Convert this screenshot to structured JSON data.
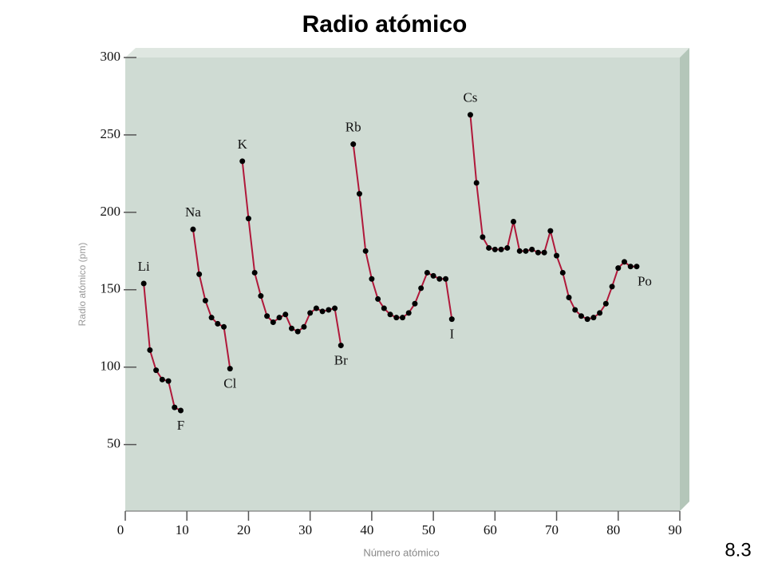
{
  "chart_data": {
    "type": "line",
    "title": "Radio atómico",
    "x_label": "Número atómico",
    "y_label": "Radio atómico (pm)",
    "figure_number": "8.3",
    "xlim": [
      0,
      90
    ],
    "ylim": [
      7,
      300
    ],
    "xticks": [
      0,
      10,
      20,
      30,
      40,
      50,
      60,
      70,
      80,
      90
    ],
    "yticks": [
      50,
      100,
      150,
      200,
      250,
      300
    ],
    "series": [
      {
        "color": "#b0183a",
        "x": [
          3,
          4,
          5,
          6,
          7,
          8,
          9
        ],
        "values": [
          154,
          111,
          98,
          92,
          91,
          74,
          72
        ]
      },
      {
        "color": "#b0183a",
        "x": [
          11,
          12,
          13,
          14,
          15,
          16,
          17
        ],
        "values": [
          189,
          160,
          143,
          132,
          128,
          126,
          99
        ]
      },
      {
        "color": "#b0183a",
        "x": [
          19,
          20,
          21,
          22,
          23,
          24,
          25,
          26,
          27,
          28,
          29,
          30,
          31,
          32,
          33,
          34,
          35
        ],
        "values": [
          233,
          196,
          161,
          146,
          133,
          129,
          132,
          134,
          125,
          123,
          126,
          135,
          138,
          136,
          137,
          138,
          114
        ]
      },
      {
        "color": "#b0183a",
        "x": [
          37,
          38,
          39,
          40,
          41,
          42,
          43,
          44,
          45,
          46,
          47,
          48,
          49,
          50,
          51,
          52,
          53
        ],
        "values": [
          244,
          212,
          175,
          157,
          144,
          138,
          134,
          132,
          132,
          135,
          141,
          151,
          161,
          159,
          157,
          157,
          131
        ]
      },
      {
        "color": "#b0183a",
        "x": [
          56,
          57,
          58,
          59,
          60,
          61,
          62,
          63,
          64,
          65,
          66,
          67,
          68,
          69,
          70,
          71,
          72,
          73,
          74,
          75,
          76,
          77,
          78,
          79,
          80,
          81,
          82,
          83
        ],
        "values": [
          263,
          219,
          184,
          177,
          176,
          176,
          177,
          194,
          175,
          175,
          176,
          174,
          174,
          188,
          172,
          161,
          145,
          137,
          133,
          131,
          132,
          135,
          141,
          152,
          164,
          168,
          165,
          165
        ]
      }
    ],
    "annotations": [
      {
        "text": "Li",
        "x": 3,
        "y": 154,
        "position": "above"
      },
      {
        "text": "F",
        "x": 9,
        "y": 72,
        "position": "below"
      },
      {
        "text": "Na",
        "x": 11,
        "y": 189,
        "position": "above"
      },
      {
        "text": "Cl",
        "x": 17,
        "y": 99,
        "position": "below"
      },
      {
        "text": "K",
        "x": 19,
        "y": 233,
        "position": "above"
      },
      {
        "text": "Br",
        "x": 35,
        "y": 114,
        "position": "below"
      },
      {
        "text": "Rb",
        "x": 37,
        "y": 244,
        "position": "above"
      },
      {
        "text": "I",
        "x": 53,
        "y": 131,
        "position": "below"
      },
      {
        "text": "Cs",
        "x": 56,
        "y": 263,
        "position": "above"
      },
      {
        "text": "Po",
        "x": 83,
        "y": 165,
        "position": "below"
      }
    ]
  }
}
